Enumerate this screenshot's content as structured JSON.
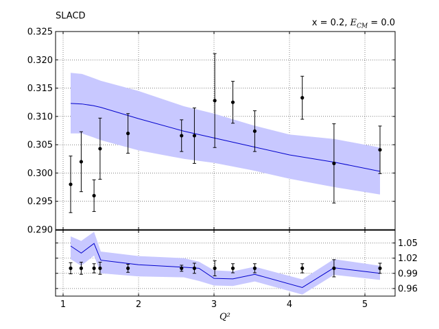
{
  "title_left": "SLACD",
  "title_right": {
    "prefix": "x = 0.2, ",
    "var": "E",
    "sub": "CM",
    "suffix": " = 0.0"
  },
  "colors": {
    "band": "#c8c8ff",
    "line": "#0000cc",
    "points": "#000000"
  },
  "chart_data": [
    {
      "type": "line",
      "title": "",
      "xlabel": "Q²",
      "ylabel": "",
      "xlim": [
        0.9,
        5.4
      ],
      "ylim": [
        0.29,
        0.325
      ],
      "yticks": [
        "0.290",
        "0.295",
        "0.300",
        "0.305",
        "0.310",
        "0.315",
        "0.320",
        "0.325"
      ],
      "xticks": [
        1,
        2,
        3,
        4,
        5
      ],
      "grid": true,
      "band": {
        "x": [
          1.1,
          1.25,
          1.4,
          1.5,
          2.0,
          2.6,
          3.0,
          3.5,
          4.0,
          4.6,
          5.2
        ],
        "lower": [
          0.307,
          0.307,
          0.3063,
          0.3058,
          0.304,
          0.3025,
          0.3018,
          0.3005,
          0.299,
          0.2975,
          0.2962
        ],
        "upper": [
          0.3177,
          0.3175,
          0.3168,
          0.3163,
          0.3145,
          0.3118,
          0.3105,
          0.3085,
          0.3068,
          0.306,
          0.3045
        ]
      },
      "line": {
        "x": [
          1.1,
          1.25,
          1.4,
          1.5,
          2.0,
          2.6,
          3.0,
          3.5,
          4.0,
          4.6,
          5.2
        ],
        "y": [
          0.3123,
          0.3122,
          0.3119,
          0.3116,
          0.3096,
          0.3074,
          0.3062,
          0.3047,
          0.3032,
          0.3019,
          0.3003
        ]
      },
      "points": {
        "x": [
          1.1,
          1.24,
          1.41,
          1.49,
          1.86,
          2.57,
          2.74,
          3.01,
          3.25,
          3.54,
          4.17,
          4.59,
          5.2
        ],
        "y": [
          0.298,
          0.302,
          0.296,
          0.3043,
          0.307,
          0.3066,
          0.3066,
          0.3128,
          0.3125,
          0.3074,
          0.3133,
          0.3017,
          0.3041
        ],
        "err": [
          0.005,
          0.0053,
          0.0028,
          0.0054,
          0.0035,
          0.0028,
          0.0049,
          0.0083,
          0.0037,
          0.0036,
          0.0038,
          0.007,
          0.0042
        ]
      }
    },
    {
      "type": "line",
      "title": "",
      "xlabel": "Q²",
      "ylabel": "",
      "xlim": [
        0.9,
        5.4
      ],
      "ylim": [
        0.945,
        1.075
      ],
      "yticks": [
        "0.96",
        "0.99",
        "1.02",
        "1.05"
      ],
      "xticks": [
        1,
        2,
        3,
        4,
        5
      ],
      "grid": true,
      "band": {
        "x": [
          1.1,
          1.24,
          1.41,
          1.5,
          2.0,
          2.6,
          2.8,
          3.0,
          3.25,
          3.54,
          4.17,
          4.59,
          5.2
        ],
        "lower": [
          1.018,
          1.005,
          1.025,
          0.99,
          0.984,
          0.982,
          0.975,
          0.966,
          0.965,
          0.974,
          0.948,
          0.987,
          0.977
        ],
        "upper": [
          1.063,
          1.054,
          1.072,
          1.033,
          1.024,
          1.02,
          1.013,
          0.996,
          0.994,
          1.003,
          0.978,
          1.018,
          1.005
        ]
      },
      "line": {
        "x": [
          1.1,
          1.24,
          1.41,
          1.5,
          2.0,
          2.6,
          2.8,
          3.0,
          3.25,
          3.54,
          4.17,
          4.59,
          5.2
        ],
        "y": [
          1.044,
          1.03,
          1.049,
          1.016,
          1.007,
          1.002,
          1.0,
          0.98,
          0.979,
          0.988,
          0.962,
          1.001,
          0.99
        ]
      },
      "points": {
        "x": [
          1.1,
          1.24,
          1.41,
          1.49,
          1.86,
          2.57,
          2.74,
          3.01,
          3.25,
          3.54,
          4.17,
          4.59,
          5.2
        ],
        "y": [
          1.0,
          1.0,
          1.0,
          1.0,
          1.0,
          1.0,
          1.0,
          1.0,
          1.0,
          1.0,
          1.0,
          1.0,
          1.0
        ],
        "err": [
          0.011,
          0.012,
          0.009,
          0.012,
          0.008,
          0.006,
          0.01,
          0.015,
          0.009,
          0.009,
          0.009,
          0.017,
          0.01
        ]
      }
    }
  ]
}
